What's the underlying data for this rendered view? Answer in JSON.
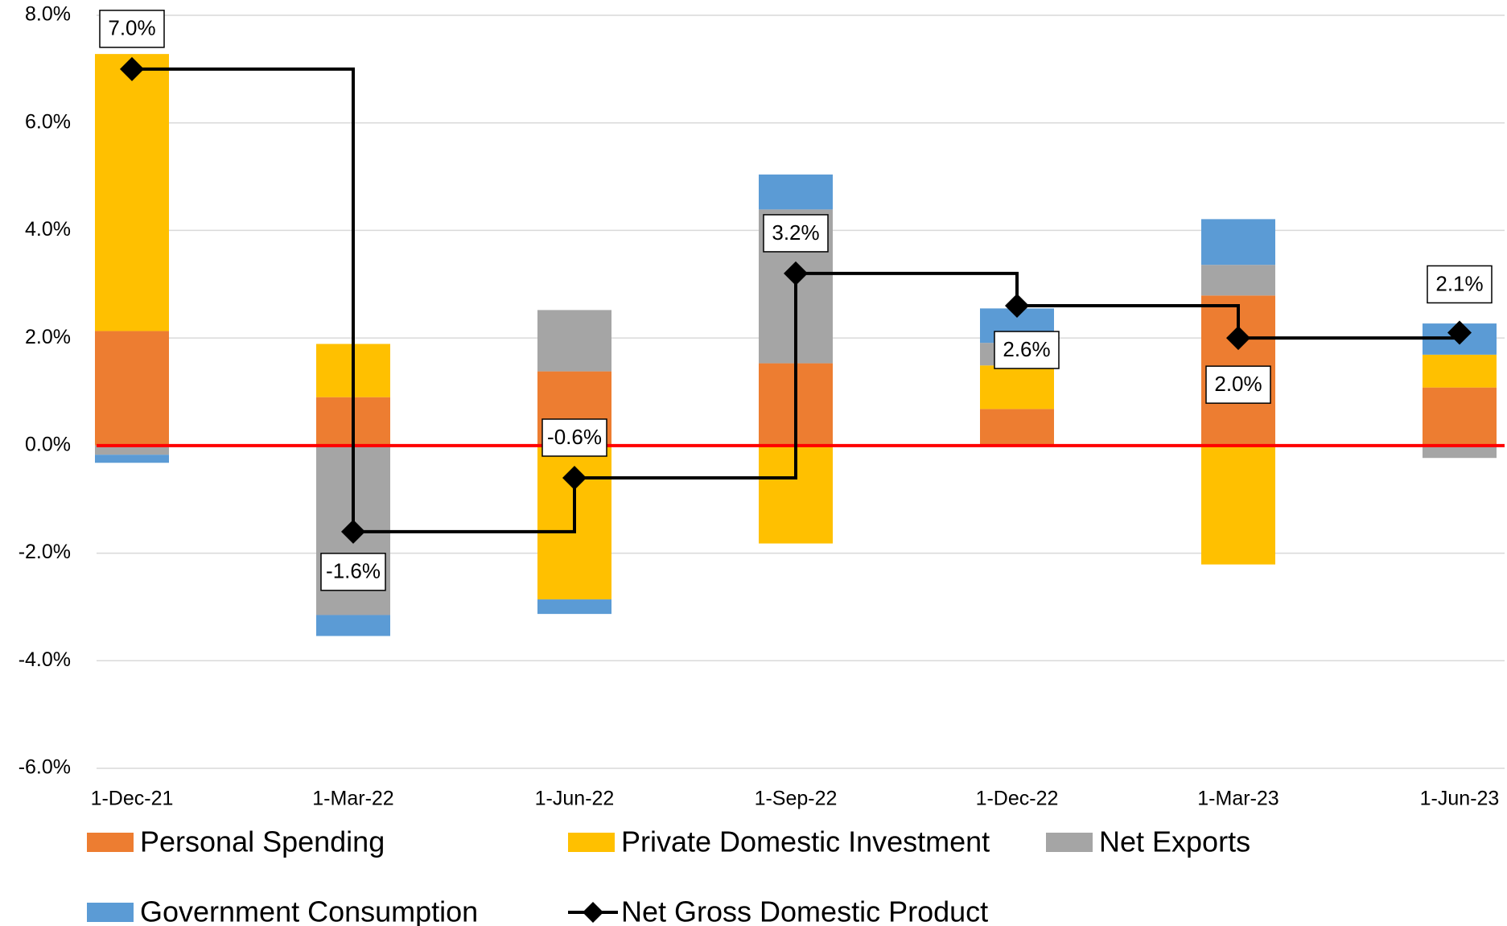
{
  "chart_data": {
    "type": "stacked-bar-step-line",
    "categories": [
      "1-Dec-21",
      "1-Mar-22",
      "1-Jun-22",
      "1-Sep-22",
      "1-Dec-22",
      "1-Mar-23",
      "1-Jun-23"
    ],
    "series": [
      {
        "name": "Personal Spending",
        "color": "#ed7d31",
        "values": [
          2.13,
          0.9,
          1.38,
          1.53,
          0.68,
          2.79,
          1.08
        ]
      },
      {
        "name": "Private Domestic Investment",
        "color": "#ffc000",
        "values": [
          5.15,
          0.99,
          -2.86,
          -1.82,
          0.81,
          -2.21,
          0.61
        ]
      },
      {
        "name": "Net Exports",
        "color": "#a5a5a5",
        "values": [
          -0.17,
          -3.15,
          1.14,
          2.86,
          0.42,
          0.57,
          -0.23
        ]
      },
      {
        "name": "Government Consumption",
        "color": "#5b9bd5",
        "values": [
          -0.15,
          -0.39,
          -0.27,
          0.65,
          0.64,
          0.85,
          0.58
        ]
      }
    ],
    "line": {
      "name": "Net Gross Domestic Product",
      "color": "#000000",
      "values": [
        7.0,
        -1.6,
        -0.6,
        3.2,
        2.6,
        2.0,
        2.1
      ],
      "value_labels": [
        "7.0%",
        "-1.6%",
        "-0.6%",
        "3.2%",
        "2.6%",
        "2.0%",
        "2.1%"
      ]
    },
    "ylim": [
      -6,
      8
    ],
    "yticks": [
      {
        "value": -6,
        "label": "-6.0%"
      },
      {
        "value": -4,
        "label": "-4.0%"
      },
      {
        "value": -2,
        "label": "-2.0%"
      },
      {
        "value": 0,
        "label": "0.0%"
      },
      {
        "value": 2,
        "label": "2.0%"
      },
      {
        "value": 4,
        "label": "4.0%"
      },
      {
        "value": 6,
        "label": "6.0%"
      },
      {
        "value": 8,
        "label": "8.0%"
      }
    ],
    "grid": true,
    "zero_line_color": "#ff0000"
  }
}
